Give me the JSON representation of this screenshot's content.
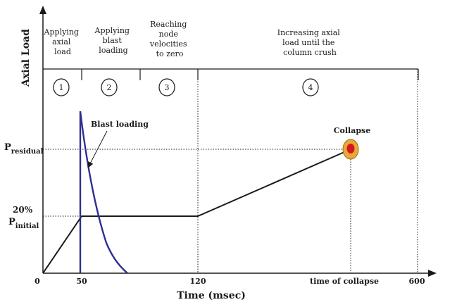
{
  "axes": {
    "x_label": "Time (msec)",
    "y_label": "Axial Load",
    "x_ticks": {
      "zero": "0",
      "fifty": "50",
      "one_twenty": "120",
      "collapse": "time of collapse",
      "six_hundred": "600"
    },
    "y_ticks": {
      "residual_main": "P",
      "residual_sub": "residual",
      "initial_pct": "20%",
      "initial_main": "P",
      "initial_sub": "initial"
    }
  },
  "phases": [
    {
      "number": "1",
      "lines": [
        "Applying",
        "axial",
        "load"
      ]
    },
    {
      "number": "2",
      "lines": [
        "Applying",
        "blast",
        "loading"
      ]
    },
    {
      "number": "3",
      "lines": [
        "Reaching",
        "node",
        "velocities",
        "to zero"
      ]
    },
    {
      "number": "4",
      "lines": [
        "Increasing axial",
        "load until the",
        "column crush"
      ]
    }
  ],
  "annotations": {
    "blast_loading": "Blast loading",
    "collapse": "Collapse"
  },
  "colors": {
    "axial_line": "#1a1a1a",
    "blast_curve": "#2e2f8f",
    "collapse_outer": "#e7a93a",
    "collapse_inner": "#d8161e"
  }
}
